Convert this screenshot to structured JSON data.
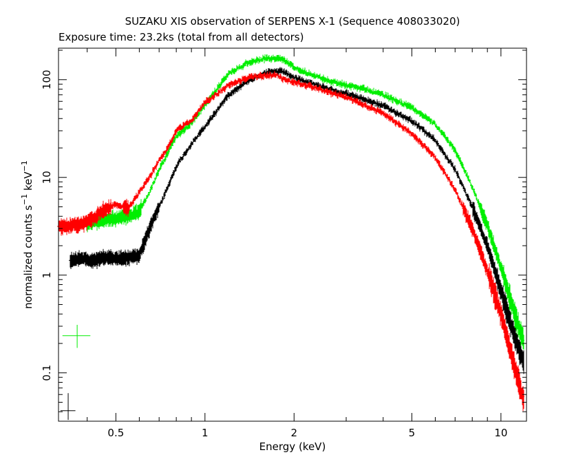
{
  "chart_data": {
    "type": "scatter",
    "title": "SUZAKU XIS observation of SERPENS X-1 (Sequence 408033020)",
    "subtitle": "Exposure time: 23.2ks (total from all detectors)",
    "xlabel": "Energy (keV)",
    "ylabel_main": "normalized counts s",
    "ylabel_sup1": "−1",
    "ylabel_mid": " keV",
    "ylabel_sup2": "−1",
    "x_scale": "log",
    "y_scale": "log",
    "xlim": [
      0.32,
      12.2
    ],
    "ylim": [
      0.032,
      210
    ],
    "x_ticks": [
      {
        "value": 0.5,
        "label": "0.5"
      },
      {
        "value": 1,
        "label": "1"
      },
      {
        "value": 2,
        "label": "2"
      },
      {
        "value": 5,
        "label": "5"
      },
      {
        "value": 10,
        "label": "10"
      }
    ],
    "y_ticks": [
      {
        "value": 0.1,
        "label": "0.1"
      },
      {
        "value": 1,
        "label": "1"
      },
      {
        "value": 10,
        "label": "10"
      },
      {
        "value": 100,
        "label": "100"
      }
    ],
    "grid": false,
    "legend": null,
    "series": [
      {
        "color": "#ff0000",
        "x": [
          0.32,
          0.35,
          0.38,
          0.42,
          0.45,
          0.5,
          0.55,
          0.6,
          0.65,
          0.7,
          0.75,
          0.8,
          0.9,
          1.0,
          1.2,
          1.4,
          1.6,
          1.75,
          1.85,
          2.0,
          2.2,
          2.4,
          2.6,
          3.0,
          3.5,
          4.0,
          5.0,
          6.0,
          7.0,
          8.0,
          9.0,
          10.0,
          11.0,
          12.0
        ],
        "y": [
          3.1,
          3.2,
          3.3,
          3.8,
          4.5,
          5.3,
          4.8,
          7.0,
          10.0,
          15,
          20,
          30,
          38,
          58,
          88,
          105,
          110,
          112,
          100,
          94,
          88,
          82,
          75,
          66,
          54,
          45,
          28,
          16,
          7.5,
          3.0,
          1.1,
          0.4,
          0.13,
          0.05
        ]
      },
      {
        "color": "#000000",
        "x": [
          0.35,
          0.38,
          0.42,
          0.45,
          0.5,
          0.55,
          0.6,
          0.65,
          0.7,
          0.75,
          0.8,
          0.9,
          1.0,
          1.2,
          1.4,
          1.6,
          1.75,
          1.85,
          2.0,
          2.2,
          2.4,
          2.6,
          3.0,
          3.5,
          4.0,
          5.0,
          6.0,
          7.0,
          8.0,
          9.0,
          10.0,
          11.0,
          12.0
        ],
        "y": [
          1.4,
          1.5,
          1.4,
          1.5,
          1.5,
          1.5,
          1.6,
          3.0,
          5.0,
          8,
          13,
          22,
          33,
          70,
          98,
          118,
          122,
          120,
          105,
          95,
          88,
          80,
          72,
          62,
          54,
          38,
          24,
          12,
          5.0,
          2.0,
          0.7,
          0.26,
          0.12
        ]
      },
      {
        "color": "#00ee00",
        "x": [
          0.4,
          0.45,
          0.5,
          0.55,
          0.6,
          0.65,
          0.7,
          0.75,
          0.8,
          0.9,
          1.0,
          1.2,
          1.4,
          1.6,
          1.75,
          1.85,
          2.0,
          2.2,
          2.4,
          2.6,
          3.0,
          3.5,
          4.0,
          5.0,
          6.0,
          7.0,
          8.0,
          9.0,
          10.0,
          11.0,
          12.0
        ],
        "y": [
          3.3,
          3.7,
          3.8,
          4.0,
          4.5,
          7.0,
          12,
          18,
          26,
          36,
          55,
          115,
          150,
          165,
          165,
          158,
          135,
          118,
          108,
          98,
          88,
          80,
          70,
          52,
          35,
          19,
          8.0,
          3.2,
          1.2,
          0.45,
          0.2
        ]
      }
    ],
    "reference_error_bars": [
      {
        "color": "#00ee00",
        "x": 0.37,
        "y": 0.24,
        "xerr_low": 0.33,
        "xerr_high": 0.41,
        "yerr_low": 0.18,
        "yerr_high": 0.31
      },
      {
        "color": "#000000",
        "x": 0.345,
        "y": 0.041,
        "xerr_low": 0.325,
        "xerr_high": 0.365,
        "yerr_low": 0.033,
        "yerr_high": 0.062
      }
    ]
  }
}
